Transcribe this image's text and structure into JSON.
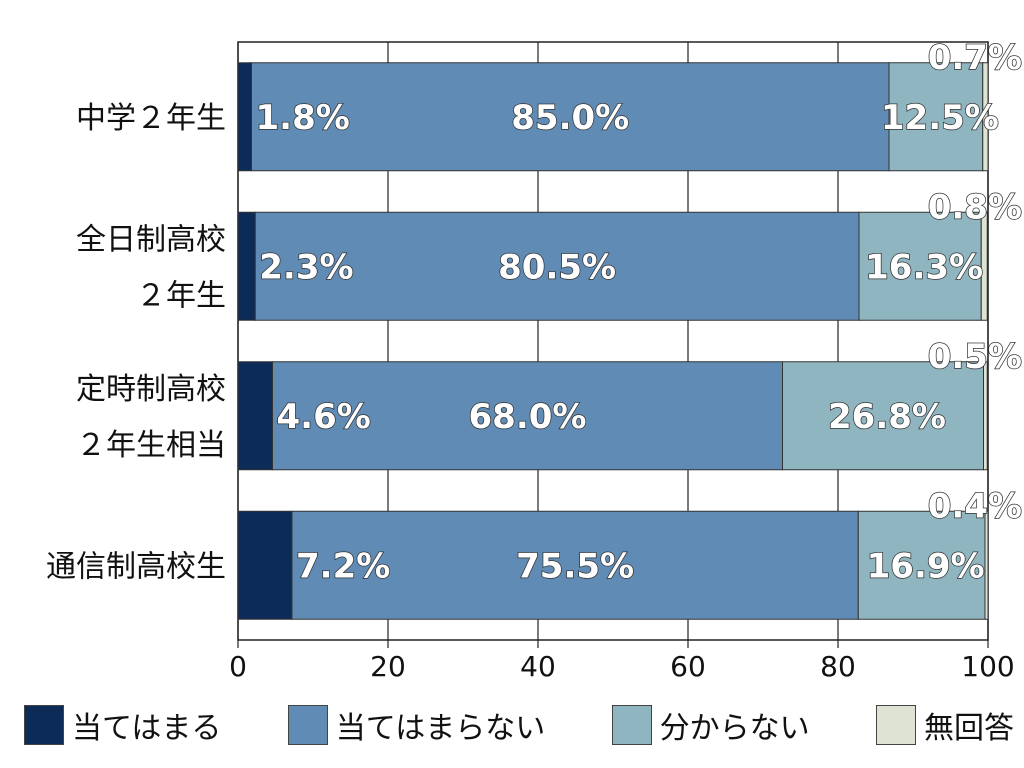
{
  "chart_data": {
    "type": "bar",
    "orientation": "horizontal",
    "stacked": true,
    "categories": [
      [
        "中学２年生"
      ],
      [
        "全日制高校",
        "２年生"
      ],
      [
        "定時制高校",
        "２年生相当"
      ],
      [
        "通信制高校生"
      ]
    ],
    "series": [
      {
        "name": "当てはまる",
        "color": "#0d2b57",
        "values": [
          1.8,
          2.3,
          4.6,
          7.2
        ],
        "labels": [
          "1.8%",
          "2.3%",
          "4.6%",
          "7.2%"
        ]
      },
      {
        "name": "当てはまらない",
        "color": "#5f8bb5",
        "values": [
          85.0,
          80.5,
          68.0,
          75.5
        ],
        "labels": [
          "85.0%",
          "80.5%",
          "68.0%",
          "75.5%"
        ]
      },
      {
        "name": "分からない",
        "color": "#8fb5c0",
        "values": [
          12.5,
          16.3,
          26.8,
          16.9
        ],
        "labels": [
          "12.5%",
          "16.3%",
          "26.8%",
          "16.9%"
        ]
      },
      {
        "name": "無回答",
        "color": "#dfe3d4",
        "values": [
          0.7,
          0.8,
          0.5,
          0.4
        ],
        "labels": [
          "0.7%",
          "0.8%",
          "0.5%",
          "0.4%"
        ]
      }
    ],
    "xlim": [
      0,
      100
    ],
    "xticks": [
      0,
      20,
      40,
      60,
      80,
      100
    ],
    "xtick_labels": [
      "0",
      "20",
      "40",
      "60",
      "80",
      "100"
    ],
    "grid": true,
    "legend_position": "bottom"
  }
}
